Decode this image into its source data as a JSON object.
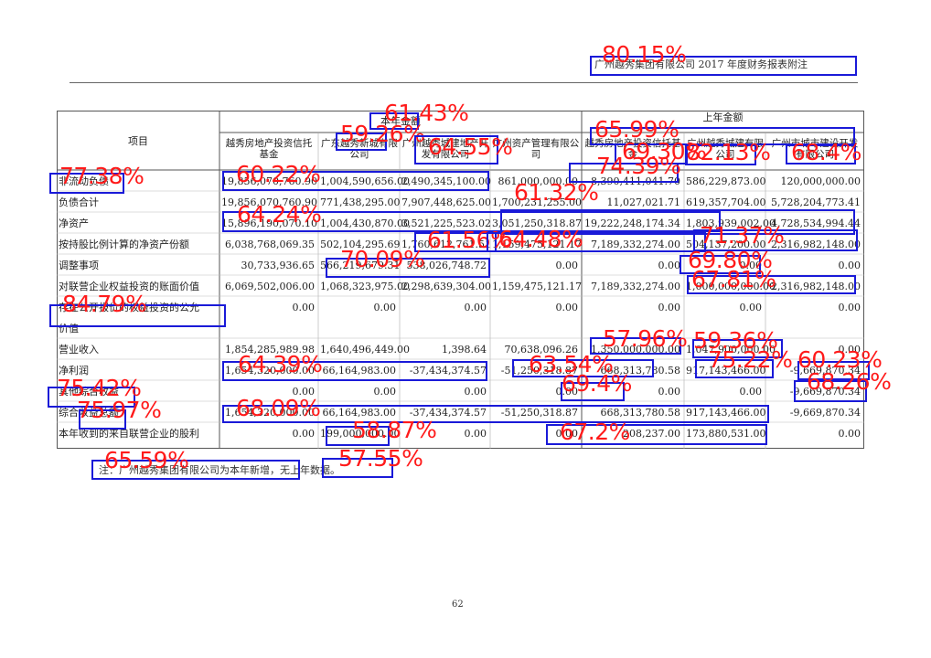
{
  "page_header": "广州越秀集团有限公司 2017 年度财务报表附注",
  "page_number": "62",
  "footnote": "注：广州越秀集团有限公司为本年新增，无上年数据。",
  "table": {
    "project_header": "项目",
    "current_period_header": "本年金额",
    "prior_period_header": "上年金额",
    "entity_headers": [
      "越秀房地产投资信托基金",
      "广东越秀新城有限公司",
      "广州越秀城建地产开发有限公司",
      "广州资产管理有限公司",
      "越秀房地产投资信托基金",
      "广州越秀城建有限公司",
      "广州市城市建设开发有限公司"
    ],
    "rows": [
      {
        "label": "非流动负债",
        "values": [
          "19,856,070,760.90",
          "1,004,590,656.00",
          "2,490,345,100.00",
          "861,000,000.00",
          "8,390,411,041.70",
          "586,229,873.00",
          "120,000,000.00"
        ]
      },
      {
        "label": "负债合计",
        "values": [
          "19,856,070,760.90",
          "771,438,295.00",
          "7,907,448,625.00",
          "1,700,231,255.00",
          "11,027,021.71",
          "619,357,704.00",
          "5,728,204,773.41"
        ]
      },
      {
        "label": "净资产",
        "values": [
          "15,896,190,070.10",
          "1,004,430,870.00",
          "3,521,225,523.02",
          "3,051,250,318.87",
          "19,222,248,174.34",
          "1,803,939,002.00",
          "4,728,534,994.44"
        ]
      },
      {
        "label": "按持股比例计算的净资产份额",
        "values": [
          "6,038,768,069.35",
          "502,104,295.69",
          "1,760,612,761.51",
          "1,159,475,121.17",
          "7,189,332,274.00",
          "504,137,200.00",
          "2,316,982,148.00"
        ]
      },
      {
        "label": "调整事项",
        "values": [
          "30,733,936.65",
          "566,219,679.31",
          "538,026,748.72",
          "0.00",
          "0.00",
          "0.00",
          "0.00"
        ]
      },
      {
        "label": "对联营企业权益投资的账面价值",
        "values": [
          "6,069,502,006.00",
          "1,068,323,975.00",
          "2,298,639,304.00",
          "1,159,475,121.17",
          "7,189,332,274.00",
          "1,000,000,000.00",
          "2,316,982,148.00"
        ]
      },
      {
        "label": "存在公开报价的权益投资的公允",
        "values": [
          "0.00",
          "0.00",
          "0.00",
          "0.00",
          "0.00",
          "0.00",
          "0.00"
        ]
      },
      {
        "label": "价值",
        "values": [
          "",
          "",
          "",
          "",
          "",
          "",
          ""
        ]
      },
      {
        "label": "营业收入",
        "values": [
          "1,854,285,989.98",
          "1,640,496,449.00",
          "1,398.64",
          "70,638,096.26",
          "1,350,000,000.00",
          "1,047,900,000.00",
          "0.00"
        ]
      },
      {
        "label": "净利润",
        "values": [
          "1,654,320,000.00",
          "66,164,983.00",
          "-37,434,374.57",
          "-51,250,318.87",
          "668,313,780.58",
          "917,143,466.00",
          "-9,669,870.34"
        ]
      },
      {
        "label": "其他综合收益",
        "values": [
          "0.00",
          "0.00",
          "0.00",
          "0.00",
          "0.00",
          "0.00",
          "-9,669,870.34"
        ]
      },
      {
        "label": "综合收益总额",
        "values": [
          "1,654,320,000.00",
          "66,164,983.00",
          "-37,434,374.57",
          "-51,250,318.87",
          "668,313,780.58",
          "917,143,466.00",
          "-9,669,870.34"
        ]
      },
      {
        "label": "本年收到的来自联营企业的股利",
        "values": [
          "0.00",
          "199,000,000.00",
          "0.00",
          "0.00",
          "208,237.00",
          "173,880,531.00",
          "0.00"
        ]
      }
    ]
  },
  "detections": [
    {
      "pct": "80.15%"
    },
    {
      "pct": "61.43%"
    },
    {
      "pct": "59.26%"
    },
    {
      "pct": "64.55%"
    },
    {
      "pct": "65.99%"
    },
    {
      "pct": "69.30%"
    },
    {
      "pct": "82.13%"
    },
    {
      "pct": "68.4%"
    },
    {
      "pct": "77.38%"
    },
    {
      "pct": "60.22%"
    },
    {
      "pct": "74.39%"
    },
    {
      "pct": "61.32%"
    },
    {
      "pct": "64.24%"
    },
    {
      "pct": "61.56%"
    },
    {
      "pct": "64.48%"
    },
    {
      "pct": "71.37%"
    },
    {
      "pct": "70.09%"
    },
    {
      "pct": "69.80%"
    },
    {
      "pct": "67.81%"
    },
    {
      "pct": "84.79%"
    },
    {
      "pct": "57.96%"
    },
    {
      "pct": "59.36%"
    },
    {
      "pct": "64.39%"
    },
    {
      "pct": "63.54%"
    },
    {
      "pct": "75.22%"
    },
    {
      "pct": "60.23%"
    },
    {
      "pct": "69.4%"
    },
    {
      "pct": "68.26%"
    },
    {
      "pct": "75.42%"
    },
    {
      "pct": "75.97%"
    },
    {
      "pct": "68.09%"
    },
    {
      "pct": "58.87%"
    },
    {
      "pct": "67.2%"
    },
    {
      "pct": "65.59%"
    },
    {
      "pct": "57.55%"
    }
  ]
}
